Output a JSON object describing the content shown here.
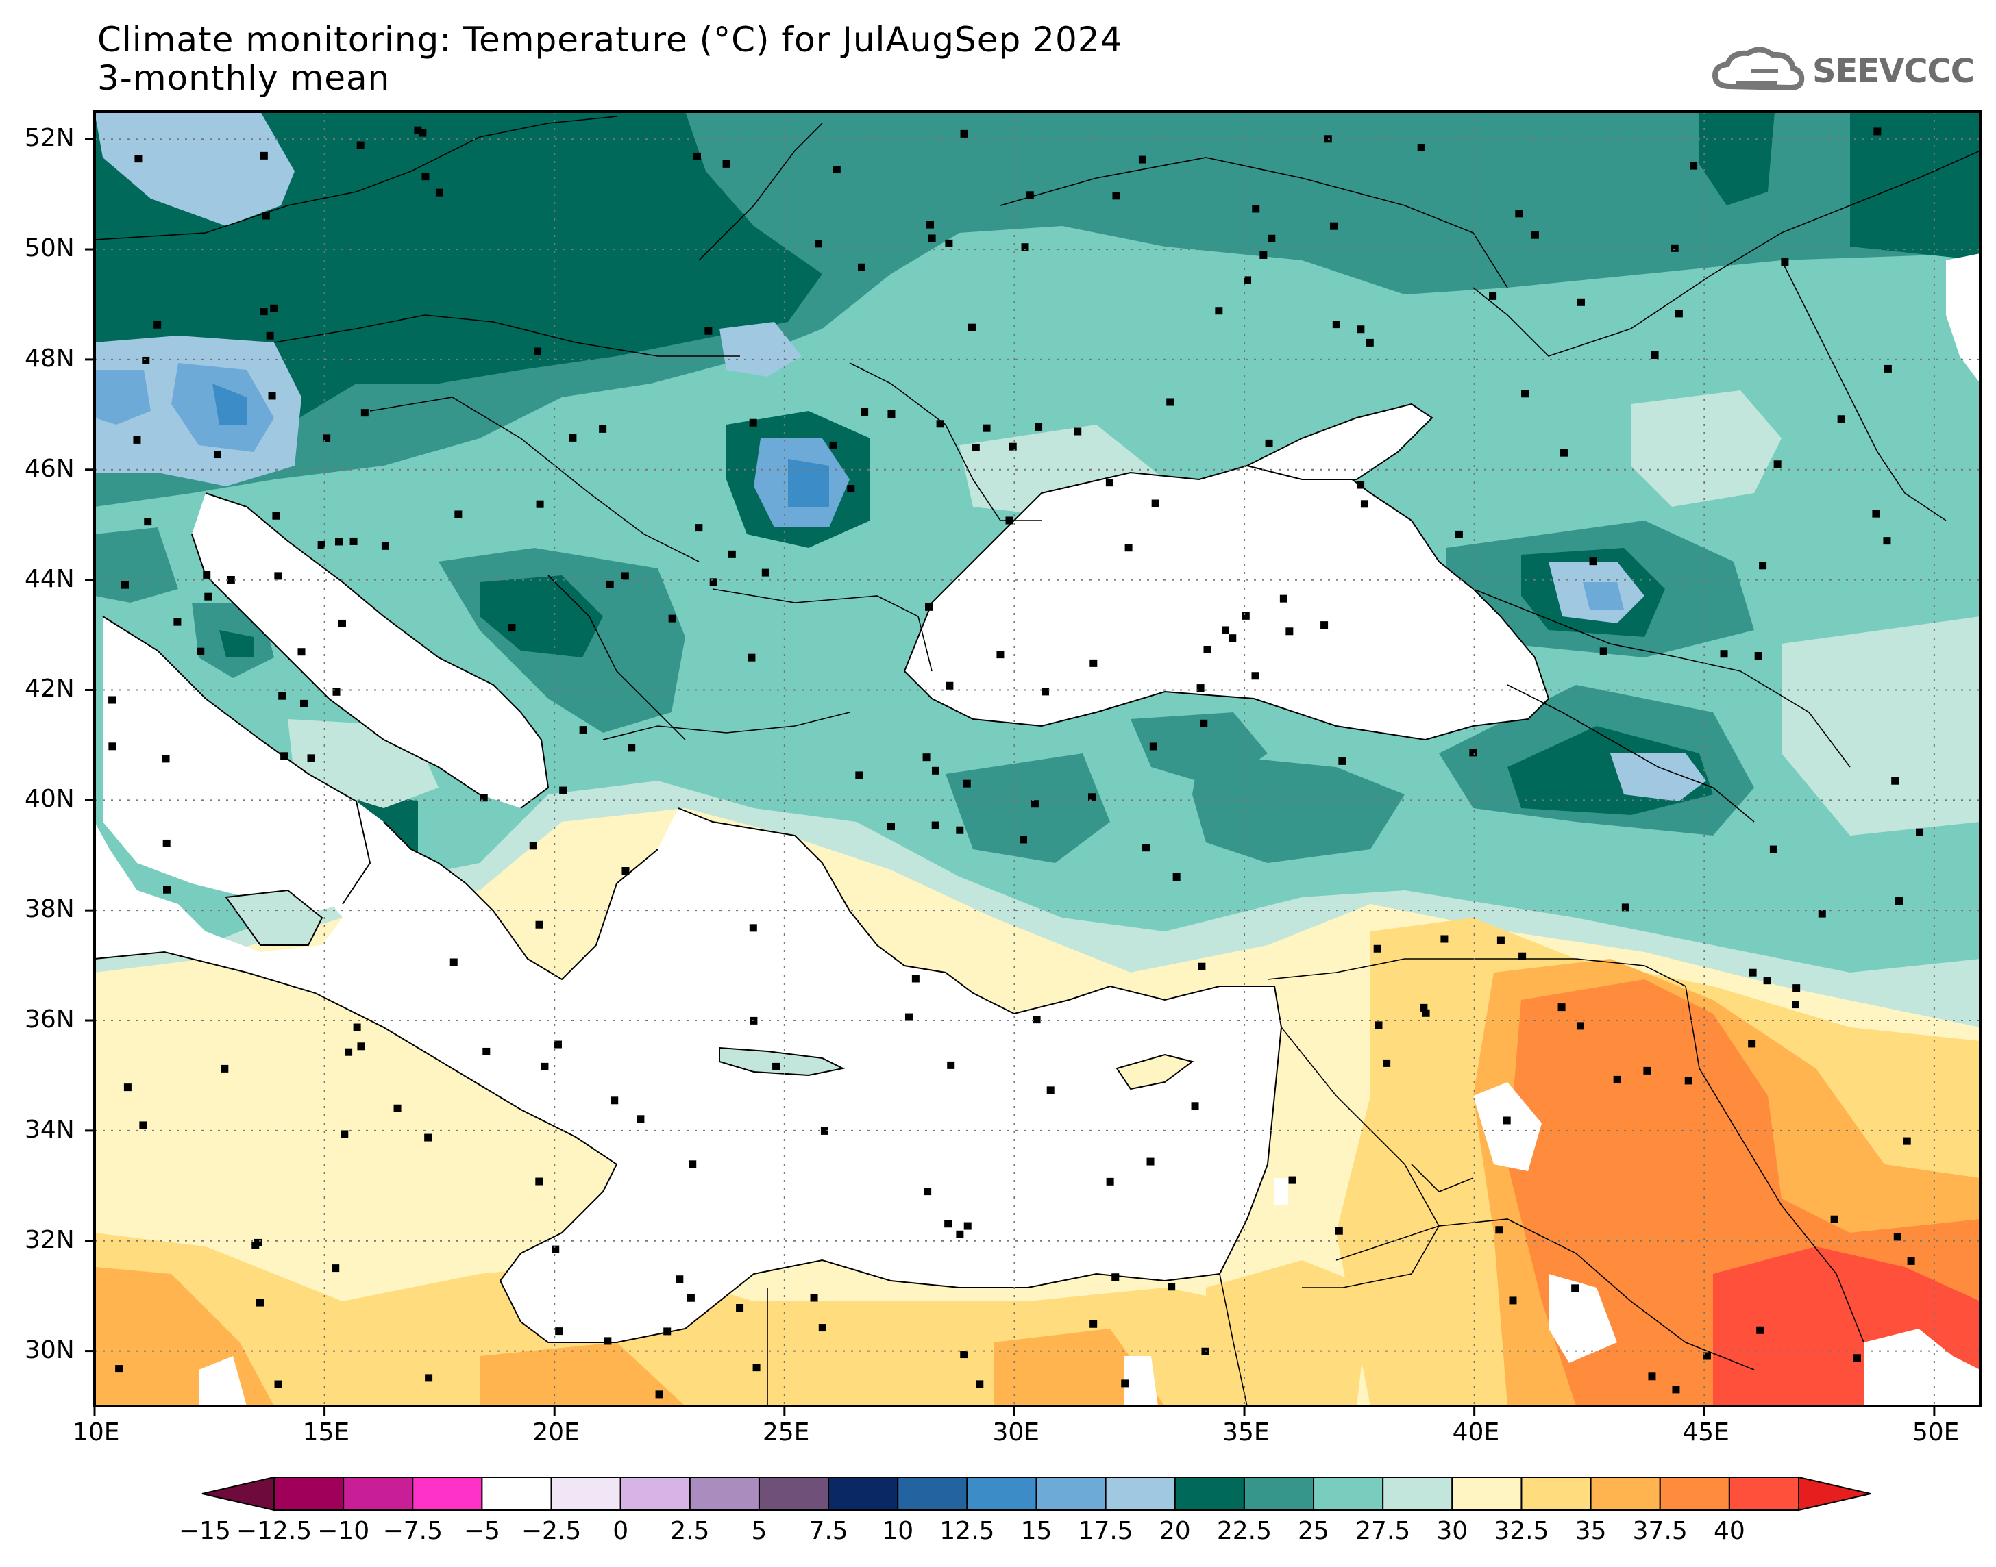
{
  "title_line1": "Climate monitoring: Temperature (°C) for JulAugSep 2024",
  "title_line2": "3-monthly mean",
  "logo": {
    "text": "SEEVCCC",
    "icon": "cloud-icon"
  },
  "map": {
    "lon_range": [
      10,
      51
    ],
    "lat_range": [
      29,
      52.5
    ],
    "lat_labels": [
      "52N",
      "50N",
      "48N",
      "46N",
      "44N",
      "42N",
      "40N",
      "38N",
      "36N",
      "34N",
      "32N",
      "30N"
    ],
    "lon_labels": [
      "10E",
      "15E",
      "20E",
      "25E",
      "30E",
      "35E",
      "40E",
      "45E",
      "50E"
    ],
    "grid": true
  },
  "colorbar": {
    "labels": [
      "-15",
      "-12.5",
      "-10",
      "-7.5",
      "-5",
      "-2.5",
      "0",
      "2.5",
      "5",
      "7.5",
      "10",
      "12.5",
      "15",
      "17.5",
      "20",
      "22.5",
      "25",
      "27.5",
      "30",
      "32.5",
      "35",
      "37.5",
      "40"
    ],
    "colors": [
      "#a0005a",
      "#c81e96",
      "#ff32c8",
      "#ffffff",
      "#f0e6f5",
      "#d7b4e6",
      "#aa8cbe",
      "#6e5078",
      "#0a2864",
      "#2364a0",
      "#3c8cc8",
      "#6eaad7",
      "#a0c8e1",
      "#00695a",
      "#37968c",
      "#78cdbe",
      "#c3e6dc",
      "#fff5c3",
      "#ffdc7d",
      "#ffb450",
      "#ff8c3c",
      "#ff503c"
    ],
    "under_color": "#6e0a3c",
    "over_color": "#e61e1e"
  }
}
